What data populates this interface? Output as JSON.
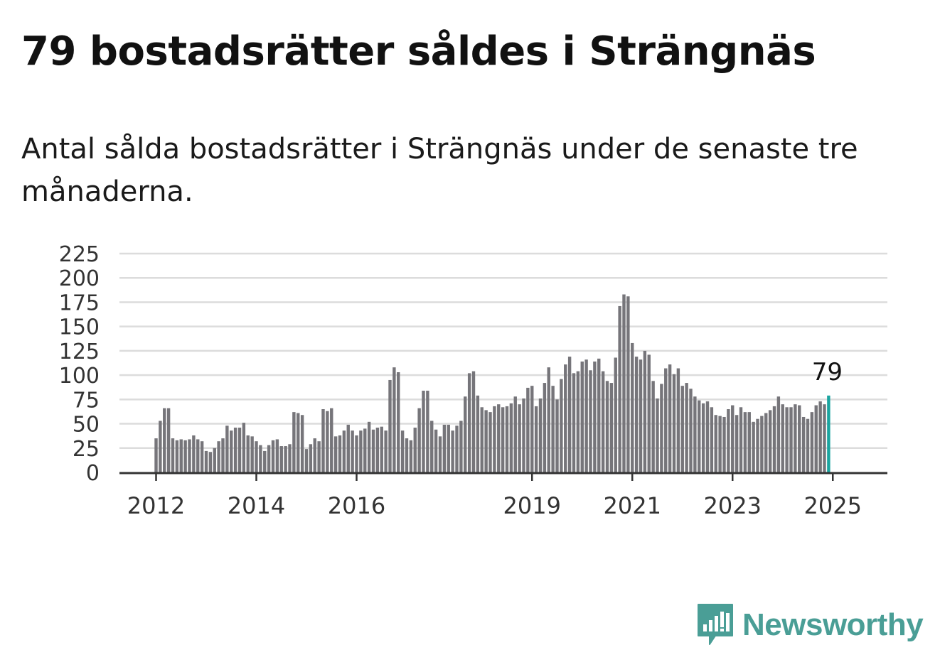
{
  "header": {
    "title": "79 bostadsrätter såldes i Strängnäs",
    "subtitle": "Antal sålda bostadsrätter i Strängnäs under de senaste tre månaderna."
  },
  "brand": {
    "name": "Newsworthy",
    "color": "#4a9e96",
    "icon": "newsworthy-logo-icon"
  },
  "chart_data": {
    "type": "bar",
    "title": "79 bostadsrätter såldes i Strängnäs",
    "subtitle": "Antal sålda bostadsrätter i Strängnäs under de senaste tre månaderna.",
    "x_start": "2012-01",
    "frequency": "monthly",
    "values": [
      35,
      53,
      66,
      66,
      35,
      33,
      34,
      33,
      34,
      38,
      34,
      32,
      22,
      21,
      25,
      32,
      35,
      48,
      43,
      46,
      46,
      51,
      38,
      37,
      32,
      28,
      22,
      28,
      33,
      34,
      27,
      27,
      29,
      62,
      61,
      59,
      24,
      29,
      35,
      32,
      65,
      63,
      66,
      37,
      38,
      43,
      49,
      43,
      38,
      43,
      45,
      52,
      44,
      46,
      47,
      43,
      95,
      108,
      103,
      43,
      35,
      33,
      46,
      66,
      84,
      84,
      53,
      44,
      37,
      49,
      49,
      43,
      48,
      53,
      78,
      102,
      104,
      79,
      67,
      64,
      62,
      68,
      70,
      67,
      68,
      71,
      78,
      70,
      76,
      87,
      89,
      68,
      76,
      92,
      108,
      89,
      75,
      96,
      111,
      119,
      102,
      104,
      114,
      116,
      105,
      114,
      117,
      104,
      94,
      92,
      118,
      171,
      183,
      181,
      133,
      119,
      116,
      125,
      121,
      94,
      76,
      91,
      107,
      111,
      101,
      107,
      89,
      92,
      86,
      78,
      74,
      71,
      73,
      67,
      59,
      58,
      57,
      65,
      69,
      59,
      67,
      62,
      62,
      52,
      55,
      58,
      61,
      64,
      68,
      78,
      70,
      67,
      67,
      70,
      69,
      57,
      55,
      62,
      69,
      73,
      70,
      79
    ],
    "highlight_last": true,
    "highlight_label": "79",
    "colors": {
      "bar": "#76757a",
      "highlight": "#1aa4a0"
    },
    "y_ticks": [
      "0",
      "25",
      "50",
      "75",
      "100",
      "125",
      "150",
      "175",
      "200",
      "225"
    ],
    "ylim": [
      0,
      225
    ],
    "x_ticks": [
      {
        "label": "2012",
        "date": "2012-01"
      },
      {
        "label": "2014",
        "date": "2014-01"
      },
      {
        "label": "2016",
        "date": "2016-01"
      },
      {
        "label": "2019",
        "date": "2019-07"
      },
      {
        "label": "2021",
        "date": "2021-07"
      },
      {
        "label": "2023",
        "date": "2023-07"
      },
      {
        "label": "2025",
        "date": "2025-07"
      }
    ],
    "grid": true,
    "xlabel": "",
    "ylabel": ""
  }
}
